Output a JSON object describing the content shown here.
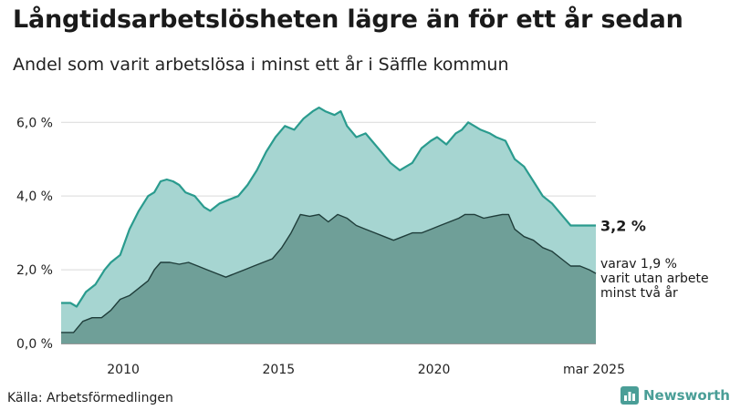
{
  "title": "Långtidsarbetslösheten lägre än för ett år sedan",
  "subtitle": "Andel som varit arbetslösa i minst ett år i Säffle kommun",
  "source": "Källa: Arbetsförmedlingen",
  "brand": {
    "name": "Newsworthy",
    "icon": "newsworthy-logo-icon"
  },
  "colors": {
    "total_fill": "#a6d5d1",
    "total_line": "#2a9b8e",
    "long_fill": "#6f9f98",
    "long_line": "#1f3d3a",
    "grid": "#d9d9d9"
  },
  "chart_data": {
    "type": "area",
    "title": "Långtidsarbetslösheten lägre än för ett år sedan",
    "subtitle": "Andel som varit arbetslösa i minst ett år i Säffle kommun",
    "xlabel": "",
    "ylabel": "",
    "x_range": [
      2008.0,
      2025.21
    ],
    "ylim": [
      0,
      6.6
    ],
    "yticks": [
      {
        "value": 0,
        "label": "0,0 %"
      },
      {
        "value": 2,
        "label": "2,0 %"
      },
      {
        "value": 4,
        "label": "4,0 %"
      },
      {
        "value": 6,
        "label": "6,0 %"
      }
    ],
    "xticks": [
      {
        "value": 2010,
        "label": "2010"
      },
      {
        "value": 2015,
        "label": "2015"
      },
      {
        "value": 2020,
        "label": "2020"
      },
      {
        "value": 2025.21,
        "label": "mar 2025"
      }
    ],
    "grid": true,
    "legend": "none",
    "series": [
      {
        "key": "total",
        "end_label": "3,2 %",
        "points": [
          [
            2008.0,
            1.1
          ],
          [
            2008.3,
            1.1
          ],
          [
            2008.5,
            1.0
          ],
          [
            2008.8,
            1.4
          ],
          [
            2009.1,
            1.6
          ],
          [
            2009.4,
            2.0
          ],
          [
            2009.6,
            2.2
          ],
          [
            2009.9,
            2.4
          ],
          [
            2010.2,
            3.1
          ],
          [
            2010.5,
            3.6
          ],
          [
            2010.8,
            4.0
          ],
          [
            2011.0,
            4.1
          ],
          [
            2011.2,
            4.4
          ],
          [
            2011.4,
            4.45
          ],
          [
            2011.6,
            4.4
          ],
          [
            2011.8,
            4.3
          ],
          [
            2012.0,
            4.1
          ],
          [
            2012.3,
            4.0
          ],
          [
            2012.6,
            3.7
          ],
          [
            2012.8,
            3.6
          ],
          [
            2013.1,
            3.8
          ],
          [
            2013.4,
            3.9
          ],
          [
            2013.7,
            4.0
          ],
          [
            2014.0,
            4.3
          ],
          [
            2014.3,
            4.7
          ],
          [
            2014.6,
            5.2
          ],
          [
            2014.9,
            5.6
          ],
          [
            2015.2,
            5.9
          ],
          [
            2015.5,
            5.8
          ],
          [
            2015.8,
            6.1
          ],
          [
            2016.1,
            6.3
          ],
          [
            2016.3,
            6.4
          ],
          [
            2016.5,
            6.3
          ],
          [
            2016.8,
            6.2
          ],
          [
            2017.0,
            6.3
          ],
          [
            2017.2,
            5.9
          ],
          [
            2017.5,
            5.6
          ],
          [
            2017.8,
            5.7
          ],
          [
            2018.0,
            5.5
          ],
          [
            2018.3,
            5.2
          ],
          [
            2018.6,
            4.9
          ],
          [
            2018.9,
            4.7
          ],
          [
            2019.1,
            4.8
          ],
          [
            2019.3,
            4.9
          ],
          [
            2019.6,
            5.3
          ],
          [
            2019.9,
            5.5
          ],
          [
            2020.1,
            5.6
          ],
          [
            2020.4,
            5.4
          ],
          [
            2020.7,
            5.7
          ],
          [
            2020.9,
            5.8
          ],
          [
            2021.1,
            6.0
          ],
          [
            2021.3,
            5.9
          ],
          [
            2021.5,
            5.8
          ],
          [
            2021.8,
            5.7
          ],
          [
            2022.0,
            5.6
          ],
          [
            2022.3,
            5.5
          ],
          [
            2022.6,
            5.0
          ],
          [
            2022.9,
            4.8
          ],
          [
            2023.2,
            4.4
          ],
          [
            2023.5,
            4.0
          ],
          [
            2023.8,
            3.8
          ],
          [
            2024.1,
            3.5
          ],
          [
            2024.4,
            3.2
          ],
          [
            2024.7,
            3.2
          ],
          [
            2025.0,
            3.2
          ],
          [
            2025.21,
            3.2
          ]
        ]
      },
      {
        "key": "long",
        "end_label": "varav 1,9 % varit utan arbete minst två år",
        "end_label_lines": [
          "varav 1,9 %",
          "varit utan arbete",
          "minst två år"
        ],
        "points": [
          [
            2008.0,
            0.3
          ],
          [
            2008.4,
            0.3
          ],
          [
            2008.7,
            0.6
          ],
          [
            2009.0,
            0.7
          ],
          [
            2009.3,
            0.7
          ],
          [
            2009.6,
            0.9
          ],
          [
            2009.9,
            1.2
          ],
          [
            2010.2,
            1.3
          ],
          [
            2010.5,
            1.5
          ],
          [
            2010.8,
            1.7
          ],
          [
            2011.0,
            2.0
          ],
          [
            2011.2,
            2.2
          ],
          [
            2011.5,
            2.2
          ],
          [
            2011.8,
            2.15
          ],
          [
            2012.1,
            2.2
          ],
          [
            2012.4,
            2.1
          ],
          [
            2012.7,
            2.0
          ],
          [
            2013.0,
            1.9
          ],
          [
            2013.3,
            1.8
          ],
          [
            2013.6,
            1.9
          ],
          [
            2013.9,
            2.0
          ],
          [
            2014.2,
            2.1
          ],
          [
            2014.5,
            2.2
          ],
          [
            2014.8,
            2.3
          ],
          [
            2015.1,
            2.6
          ],
          [
            2015.4,
            3.0
          ],
          [
            2015.7,
            3.5
          ],
          [
            2016.0,
            3.45
          ],
          [
            2016.3,
            3.5
          ],
          [
            2016.6,
            3.3
          ],
          [
            2016.9,
            3.5
          ],
          [
            2017.2,
            3.4
          ],
          [
            2017.5,
            3.2
          ],
          [
            2017.8,
            3.1
          ],
          [
            2018.1,
            3.0
          ],
          [
            2018.4,
            2.9
          ],
          [
            2018.7,
            2.8
          ],
          [
            2019.0,
            2.9
          ],
          [
            2019.3,
            3.0
          ],
          [
            2019.6,
            3.0
          ],
          [
            2019.9,
            3.1
          ],
          [
            2020.2,
            3.2
          ],
          [
            2020.5,
            3.3
          ],
          [
            2020.8,
            3.4
          ],
          [
            2021.0,
            3.5
          ],
          [
            2021.3,
            3.5
          ],
          [
            2021.6,
            3.4
          ],
          [
            2021.9,
            3.45
          ],
          [
            2022.2,
            3.5
          ],
          [
            2022.4,
            3.5
          ],
          [
            2022.6,
            3.1
          ],
          [
            2022.9,
            2.9
          ],
          [
            2023.2,
            2.8
          ],
          [
            2023.5,
            2.6
          ],
          [
            2023.8,
            2.5
          ],
          [
            2024.1,
            2.3
          ],
          [
            2024.4,
            2.1
          ],
          [
            2024.7,
            2.1
          ],
          [
            2025.0,
            2.0
          ],
          [
            2025.21,
            1.9
          ]
        ]
      }
    ]
  }
}
